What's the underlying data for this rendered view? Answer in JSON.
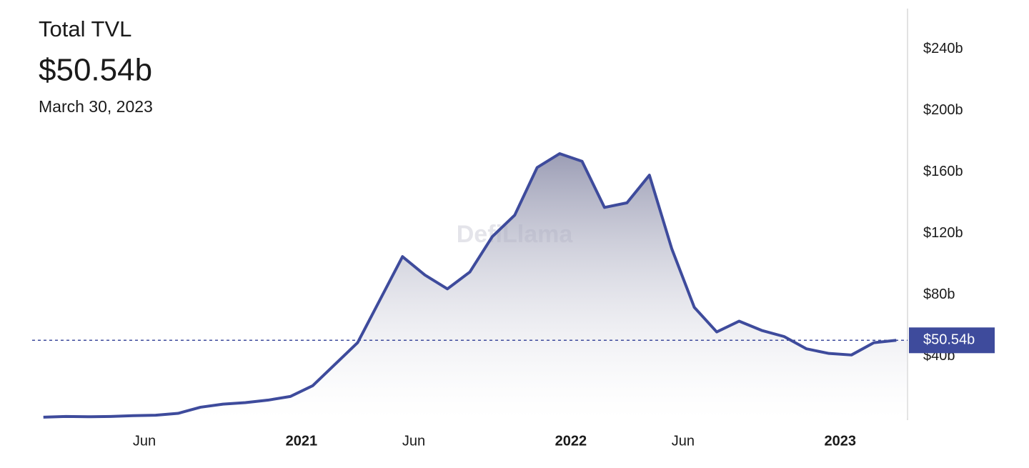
{
  "chart_data": {
    "type": "area",
    "title": "Total TVL",
    "current": {
      "value": 50.54,
      "label": "$50.54b"
    },
    "date": "March 30, 2023",
    "watermark": "DefiLlama",
    "color": "#3e4b9c",
    "x": [
      "2020-01",
      "2020-02",
      "2020-03",
      "2020-04",
      "2020-05",
      "2020-06",
      "2020-07",
      "2020-08",
      "2020-09",
      "2020-10",
      "2020-11",
      "2020-12",
      "2021-01",
      "2021-02",
      "2021-03",
      "2021-04",
      "2021-05",
      "2021-06",
      "2021-07",
      "2021-08",
      "2021-09",
      "2021-10",
      "2021-11",
      "2021-12",
      "2022-01",
      "2022-02",
      "2022-03",
      "2022-04",
      "2022-05",
      "2022-06",
      "2022-07",
      "2022-08",
      "2022-09",
      "2022-10",
      "2022-11",
      "2022-12",
      "2023-01",
      "2023-02",
      "2023-03"
    ],
    "values": [
      0.5,
      1,
      0.8,
      1,
      1.5,
      1.8,
      3,
      7,
      9,
      10,
      11.6,
      14,
      21,
      35,
      49,
      77,
      105,
      93,
      84,
      95,
      118,
      132,
      163,
      172,
      167,
      137,
      140,
      158,
      110,
      72,
      56,
      63,
      57,
      53,
      45,
      42,
      41,
      49,
      50.54
    ],
    "xlim": [
      "2020-01",
      "2023-03"
    ],
    "xticks": [
      {
        "value": "2020-06",
        "label": "Jun"
      },
      {
        "value": "2021-01",
        "label": "2021"
      },
      {
        "value": "2021-06",
        "label": "Jun"
      },
      {
        "value": "2022-01",
        "label": "2022"
      },
      {
        "value": "2022-06",
        "label": "Jun"
      },
      {
        "value": "2023-01",
        "label": "2023"
      }
    ],
    "ylim": [
      0,
      265
    ],
    "yticks": [
      {
        "value": 40,
        "label": "$40b"
      },
      {
        "value": 80,
        "label": "$80b"
      },
      {
        "value": 120,
        "label": "$120b"
      },
      {
        "value": 160,
        "label": "$160b"
      },
      {
        "value": 200,
        "label": "$200b"
      },
      {
        "value": 240,
        "label": "$240b"
      }
    ]
  }
}
